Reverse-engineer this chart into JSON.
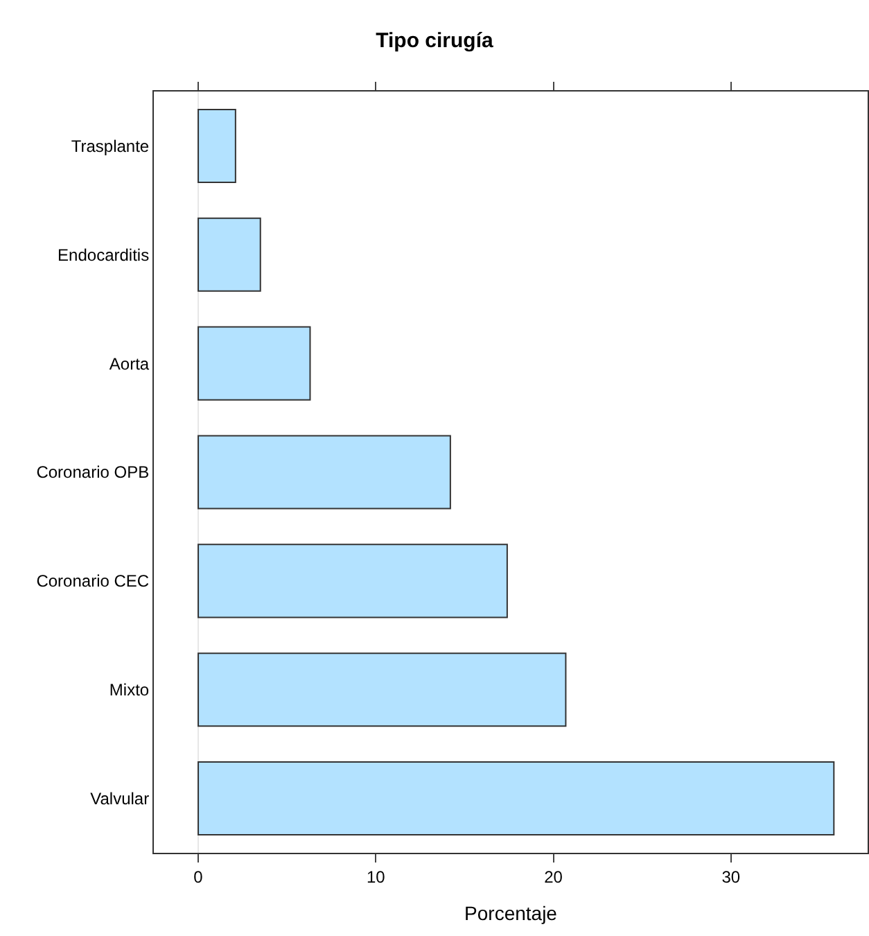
{
  "chart_data": {
    "type": "bar",
    "orientation": "horizontal",
    "title": "Tipo cirugía",
    "xlabel": "Porcentaje",
    "categories": [
      "Trasplante",
      "Endocarditis",
      "Aorta",
      "Coronario OPB",
      "Coronario CEC",
      "Mixto",
      "Valvular"
    ],
    "values": [
      2.1,
      3.5,
      6.3,
      14.2,
      17.4,
      20.7,
      35.8
    ],
    "color": "#b3e2ff",
    "xlim": [
      -2.5,
      37.7
    ],
    "xticks": [
      0,
      10,
      20,
      30
    ],
    "ref_lines": [
      {
        "axis": "x",
        "value": 0,
        "color": "#e6e6e6"
      }
    ],
    "grid": false
  }
}
